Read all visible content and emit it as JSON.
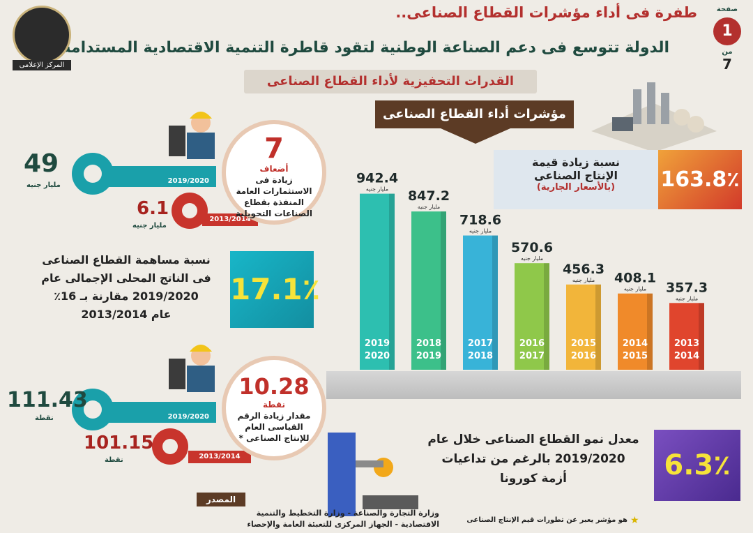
{
  "header": {
    "title_main": "طفرة فى أداء مؤشرات القطاع الصناعى..",
    "title_sub": "الدولة تتوسع فى دعم الصناعة الوطنية لتقود قاطرة التنمية الاقتصادية المستدامة",
    "section": "القدرات التحفيزية لأداء القطاع الصناعى",
    "page_label": "صفحة",
    "page_number": "1",
    "page_of_label": "من",
    "page_total": "7"
  },
  "logo": {
    "text": "المركز الإعلامى"
  },
  "banner": {
    "text": "مؤشرات أداء القطاع الصناعى"
  },
  "production": {
    "line1": "نسبة زيادة قيمة",
    "line2": "الإنتاج الصناعى",
    "line3": "(بالأسعار الجارية)",
    "value": "163.8٪"
  },
  "investments": {
    "circle_value": "7",
    "circle_unit": "أضعاف",
    "circle_text": "زيادة فى الاستثمارات العامة المنفذة بقطاع الصناعات التحويلية",
    "value_new": "49",
    "value_new_unit": "مليار جنيه",
    "year_new": "2019/2020",
    "value_old": "6.1",
    "value_old_unit": "مليار جنيه",
    "year_old": "2013/2014"
  },
  "gdp_share": {
    "text_l1": "نسبة مساهمة القطاع الصناعى",
    "text_l2": "فى الناتج المحلى الإجمالى عام",
    "text_l3": "2019/2020 مقارنة بـ 16٪",
    "text_l4": "عام 2013/2014",
    "value": "17.1٪"
  },
  "index": {
    "circle_value": "10.28",
    "circle_unit": "نقطة",
    "circle_text": "مقدار زيادة الرقم القياسى العام للإنتاج الصناعى *",
    "value_new": "111.43",
    "value_new_unit": "نقطة",
    "year_new": "2019/2020",
    "value_old": "101.15",
    "value_old_unit": "نقطة",
    "year_old": "2013/2014"
  },
  "growth": {
    "text_l1": "معدل نمو القطاع الصناعى خلال عام",
    "text_l2": "2019/2020 بالرغم من تداعيات",
    "text_l3": "أزمة كورونا",
    "value": "6.3٪"
  },
  "source": {
    "label": "المصدر",
    "line1": "وزارة التجارة والصناعة - وزارة التخطيط والتنمية",
    "line2": "الاقتصادية - الجهاز المركزى للتعبئة العامة والإحصاء"
  },
  "footnote": "هو مؤشر يعبر عن تطورات قيم الإنتاج الصناعى",
  "chart_data": {
    "type": "bar",
    "categories": [
      "2019 2020",
      "2018 2019",
      "2017 2018",
      "2016 2017",
      "2015 2016",
      "2014 2015",
      "2013 2014"
    ],
    "values": [
      942.4,
      847.2,
      718.6,
      570.6,
      456.3,
      408.1,
      357.3
    ],
    "value_labels": [
      "942.4",
      "847.2",
      "718.6",
      "570.6",
      "456.3",
      "408.1",
      "357.3"
    ],
    "unit_label": "مليار جنيه",
    "colors": [
      "#2dbfb0",
      "#3cc08a",
      "#38b3d8",
      "#8fc84a",
      "#f2b53a",
      "#f08a2a",
      "#e0452d"
    ],
    "ylim": [
      0,
      1000
    ]
  }
}
